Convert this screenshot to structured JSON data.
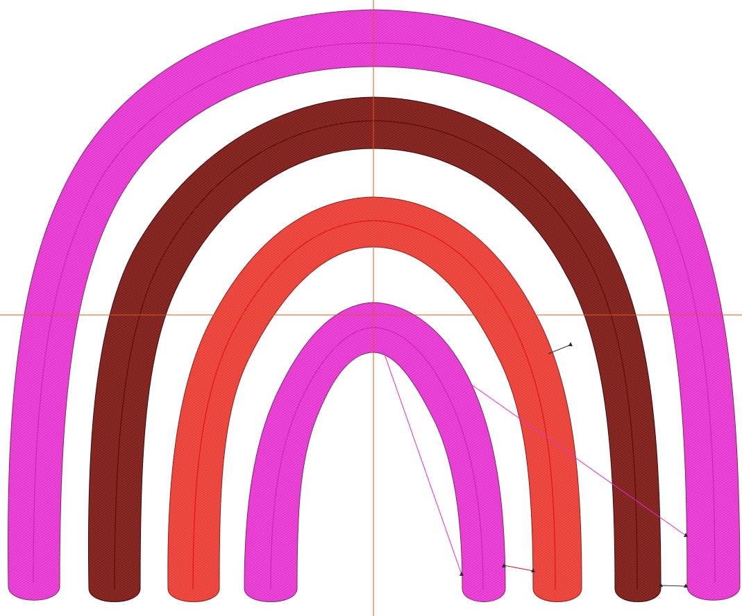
{
  "view": {
    "background": "#ffffff",
    "crosshair_color": "#d9582a"
  },
  "bands": [
    {
      "name": "outer-band",
      "fill": "#ef47d9",
      "stitch": "#c41fb2",
      "outline": "#7a2a70",
      "path_color": "#d21fc0"
    },
    {
      "name": "second-band",
      "fill": "#8e2b26",
      "stitch": "#5a1110",
      "outline": "#3a0b0a",
      "path_color": "#5a0b08"
    },
    {
      "name": "third-band",
      "fill": "#f04e45",
      "stitch": "#d22a20",
      "outline": "#8a1f18",
      "path_color": "#e01410"
    },
    {
      "name": "inner-band",
      "fill": "#ef47d9",
      "stitch": "#c41fb2",
      "outline": "#7a2a70",
      "path_color": "#d21fc0"
    }
  ],
  "jump_colors": {
    "magenta": "#e02ad0",
    "red": "#cc1010",
    "dark": "#2a2a2a"
  }
}
